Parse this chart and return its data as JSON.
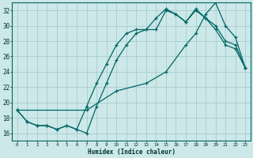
{
  "xlabel": "Humidex (Indice chaleur)",
  "bg_color": "#cce8e8",
  "grid_color": "#aacccc",
  "line_color": "#006666",
  "xlim": [
    -0.5,
    23.5
  ],
  "ylim": [
    15.0,
    33.0
  ],
  "yticks": [
    16,
    18,
    20,
    22,
    24,
    26,
    28,
    30,
    32
  ],
  "xticks": [
    0,
    1,
    2,
    3,
    4,
    5,
    6,
    7,
    8,
    9,
    10,
    11,
    12,
    13,
    14,
    15,
    16,
    17,
    18,
    19,
    20,
    21,
    22,
    23
  ],
  "line1_x": [
    0,
    1,
    2,
    3,
    4,
    5,
    6,
    7,
    8,
    9,
    10,
    11,
    12,
    13,
    14,
    15,
    16,
    17,
    18,
    19,
    20,
    21,
    22,
    23
  ],
  "line1_y": [
    19.0,
    17.5,
    17.0,
    17.0,
    16.5,
    17.0,
    16.5,
    16.0,
    19.5,
    22.5,
    25.5,
    27.5,
    29.0,
    29.5,
    29.5,
    32.0,
    31.5,
    30.5,
    32.0,
    31.0,
    30.0,
    28.0,
    27.5,
    24.5
  ],
  "line2_x": [
    0,
    1,
    2,
    3,
    4,
    5,
    6,
    7,
    8,
    9,
    10,
    11,
    12,
    13,
    14,
    15,
    16,
    17,
    18,
    19,
    20,
    21,
    22,
    23
  ],
  "line2_y": [
    19.0,
    17.5,
    17.0,
    17.0,
    16.5,
    17.0,
    16.5,
    19.5,
    22.5,
    25.0,
    27.5,
    29.0,
    29.5,
    29.5,
    31.0,
    32.2,
    31.5,
    30.5,
    32.2,
    31.0,
    29.5,
    27.5,
    27.0,
    24.5
  ],
  "line3_x": [
    0,
    7,
    10,
    13,
    15,
    17,
    18,
    19,
    20,
    21,
    22,
    23
  ],
  "line3_y": [
    19.0,
    19.0,
    21.5,
    22.5,
    24.0,
    27.5,
    29.0,
    31.5,
    33.0,
    30.0,
    28.5,
    24.5
  ]
}
